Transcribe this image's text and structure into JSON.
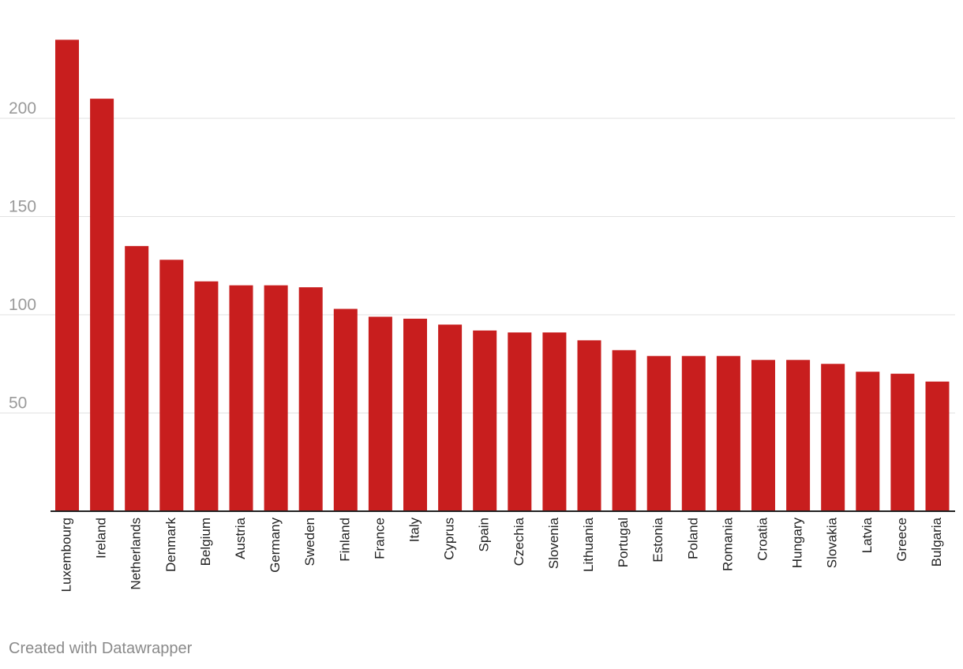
{
  "chart_data": {
    "type": "bar",
    "title": "",
    "xlabel": "",
    "ylabel": "",
    "ylim": [
      0,
      240
    ],
    "yticks": [
      50,
      100,
      150,
      200
    ],
    "grid": true,
    "bar_color": "#c81e1e",
    "categories": [
      "Luxembourg",
      "Ireland",
      "Netherlands",
      "Denmark",
      "Belgium",
      "Austria",
      "Germany",
      "Sweden",
      "Finland",
      "France",
      "Italy",
      "Cyprus",
      "Spain",
      "Czechia",
      "Slovenia",
      "Lithuania",
      "Portugal",
      "Estonia",
      "Poland",
      "Romania",
      "Croatia",
      "Hungary",
      "Slovakia",
      "Latvia",
      "Greece",
      "Bulgaria"
    ],
    "values": [
      240,
      210,
      135,
      128,
      117,
      115,
      115,
      114,
      103,
      99,
      98,
      95,
      92,
      91,
      91,
      87,
      82,
      79,
      79,
      79,
      77,
      77,
      75,
      71,
      70,
      66
    ]
  },
  "footer": {
    "credit": "Created with Datawrapper"
  }
}
